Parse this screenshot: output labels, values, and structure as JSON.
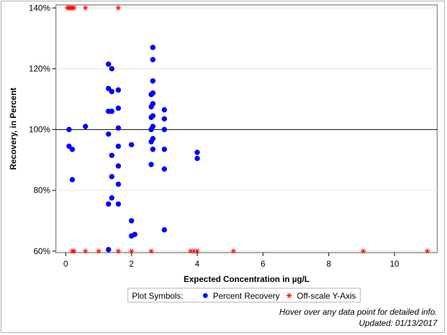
{
  "chart_data": {
    "type": "scatter",
    "xlabel": "Expected Concentration in µg/L",
    "ylabel": "Recovery, in Percent",
    "xlim": [
      -0.3,
      11.3
    ],
    "ylim": [
      59.5,
      141
    ],
    "x_ticks": [
      0,
      2,
      4,
      6,
      8,
      10
    ],
    "y_ticks": [
      60,
      80,
      100,
      120,
      140
    ],
    "y_tick_labels": [
      "60%",
      "80%",
      "100%",
      "120%",
      "140%"
    ],
    "grid": true,
    "reference_line": 100,
    "legend": {
      "title": "Plot Symbols:",
      "placement": "bottom",
      "entries": [
        "Percent Recovery",
        "Off-scale Y-Axis"
      ]
    },
    "series": [
      {
        "name": "Percent Recovery",
        "color": "#0000ff",
        "marker": "circle",
        "points": [
          [
            0.1,
            100
          ],
          [
            0.1,
            94.5
          ],
          [
            0.2,
            93.5
          ],
          [
            0.2,
            83.5
          ],
          [
            0.6,
            101
          ],
          [
            1.3,
            121.5
          ],
          [
            1.3,
            113.5
          ],
          [
            1.3,
            106
          ],
          [
            1.3,
            98.5
          ],
          [
            1.3,
            75.5
          ],
          [
            1.3,
            60.5
          ],
          [
            1.4,
            120
          ],
          [
            1.4,
            112.5
          ],
          [
            1.4,
            106
          ],
          [
            1.4,
            91.5
          ],
          [
            1.4,
            84.5
          ],
          [
            1.4,
            77.5
          ],
          [
            1.6,
            113
          ],
          [
            1.6,
            107
          ],
          [
            1.6,
            100.5
          ],
          [
            1.6,
            94.5
          ],
          [
            1.6,
            88
          ],
          [
            1.6,
            82
          ],
          [
            1.6,
            75.5
          ],
          [
            2.0,
            95
          ],
          [
            2.0,
            70
          ],
          [
            2.0,
            65
          ],
          [
            2.1,
            65.5
          ],
          [
            2.6,
            111.5
          ],
          [
            2.6,
            107.5
          ],
          [
            2.6,
            104
          ],
          [
            2.6,
            100
          ],
          [
            2.6,
            96
          ],
          [
            2.6,
            88.5
          ],
          [
            2.65,
            127
          ],
          [
            2.65,
            123
          ],
          [
            2.65,
            116
          ],
          [
            2.65,
            112
          ],
          [
            2.65,
            108.5
          ],
          [
            2.65,
            104.5
          ],
          [
            2.65,
            101
          ],
          [
            2.65,
            97
          ],
          [
            2.65,
            93.5
          ],
          [
            3.0,
            106.5
          ],
          [
            3.0,
            103.5
          ],
          [
            3.0,
            100
          ],
          [
            3.0,
            93.5
          ],
          [
            3.0,
            87
          ],
          [
            3.0,
            67
          ],
          [
            4.0,
            92.5
          ],
          [
            4.0,
            90.5
          ]
        ]
      },
      {
        "name": "Off-scale Y-Axis",
        "color": "#ff0000",
        "marker": "asterisk",
        "points": [
          [
            0.05,
            140
          ],
          [
            0.1,
            140
          ],
          [
            0.15,
            140
          ],
          [
            0.2,
            140
          ],
          [
            0.25,
            140
          ],
          [
            0.6,
            140
          ],
          [
            1.6,
            140
          ],
          [
            0.2,
            60
          ],
          [
            0.25,
            60
          ],
          [
            0.6,
            60
          ],
          [
            1.0,
            60
          ],
          [
            1.6,
            60
          ],
          [
            2.0,
            60
          ],
          [
            2.6,
            60
          ],
          [
            3.8,
            60
          ],
          [
            3.9,
            60
          ],
          [
            4.0,
            60
          ],
          [
            5.1,
            60
          ],
          [
            9.05,
            60
          ],
          [
            11.0,
            60
          ]
        ]
      }
    ]
  },
  "notes": {
    "hover": "Hover over any data point for detailed info.",
    "updated": "Updated: 01/13/2017"
  }
}
